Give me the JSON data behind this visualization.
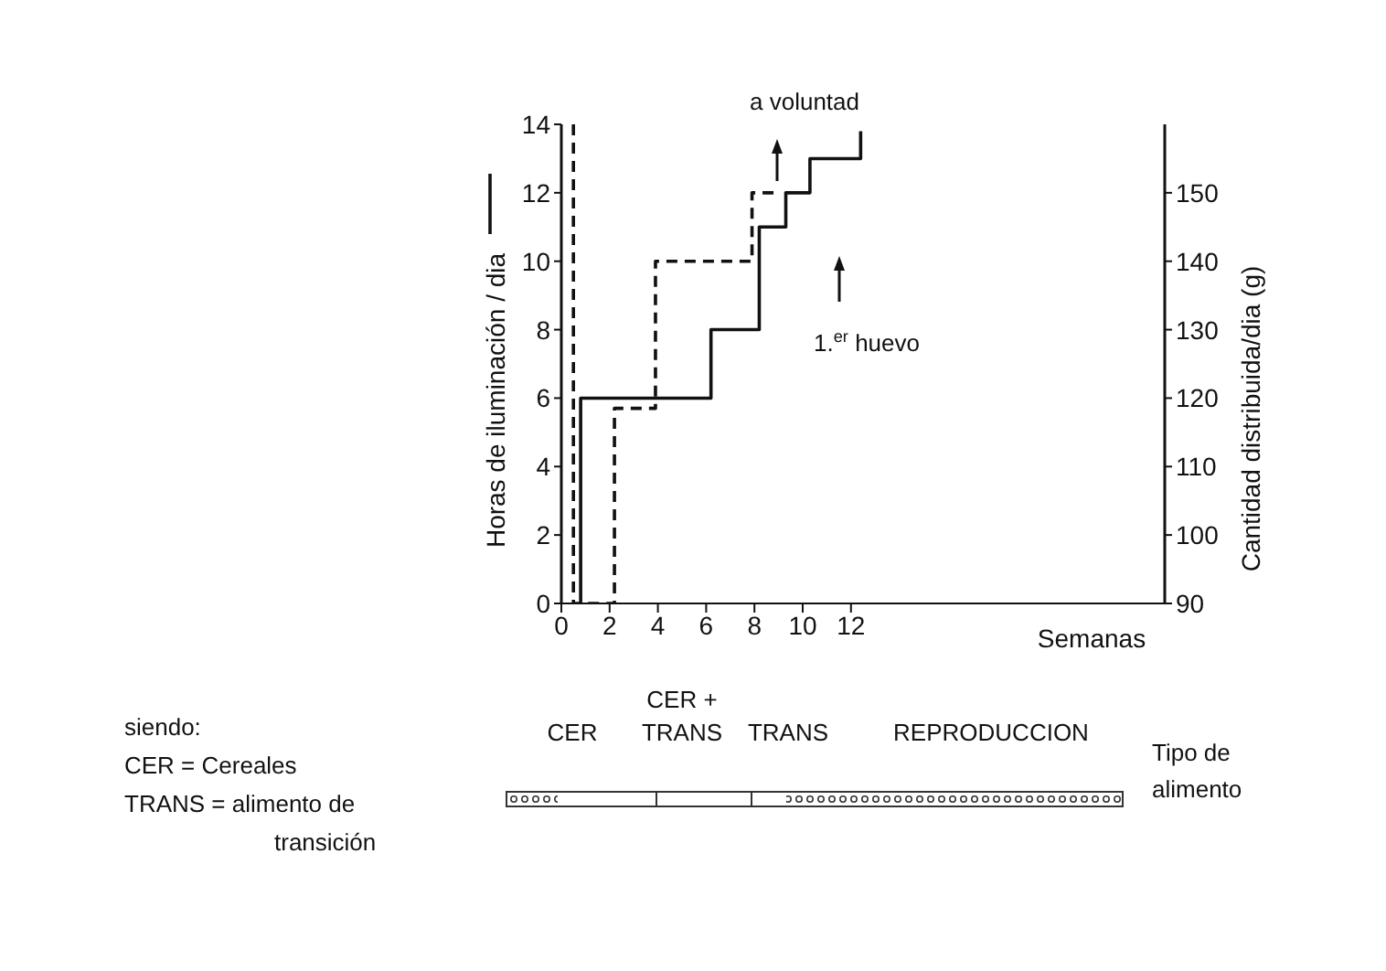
{
  "chart_data": {
    "type": "line",
    "ylabel": "Horas de iluminación / dia",
    "y2label": "Cantidad distribuida/dia (g)",
    "xlabel": "Semanas",
    "xlim": [
      0,
      25
    ],
    "xticks": [
      0,
      2,
      4,
      6,
      8,
      10,
      12
    ],
    "ylim": [
      0,
      14
    ],
    "yticks": [
      0,
      2,
      4,
      6,
      8,
      10,
      12,
      14
    ],
    "y2lim": [
      90,
      160
    ],
    "y2ticks": [
      90,
      100,
      110,
      120,
      130,
      140,
      150
    ],
    "series": [
      {
        "color": "#111111",
        "line_style": "solid",
        "x": [
          0.8,
          0.8,
          6.2,
          6.2,
          8.2,
          8.2,
          9.3,
          9.3,
          10.3,
          10.3,
          12.4,
          12.4
        ],
        "values": [
          0,
          6,
          6,
          8,
          8,
          11,
          11,
          12,
          12,
          13,
          13,
          13.8
        ]
      },
      {
        "color": "#111111",
        "line_style": "dashed",
        "axis": "y2",
        "x": [
          0.5,
          0.5,
          2.2,
          2.2,
          3.9,
          3.9,
          7.9,
          7.9,
          9
        ],
        "values": [
          160,
          90,
          90,
          118.5,
          118.5,
          140,
          140,
          150,
          150
        ]
      }
    ],
    "annotations": [
      "a voluntad",
      "1.$^{er}$ huevo",
      "CER",
      "CER + TRANS",
      "TRANS",
      "REPRODUCCION",
      "Tipo de alimento",
      "siendo:",
      "CER = Cereales",
      "TRANS = alimento de transición"
    ],
    "marker": "none"
  }
}
